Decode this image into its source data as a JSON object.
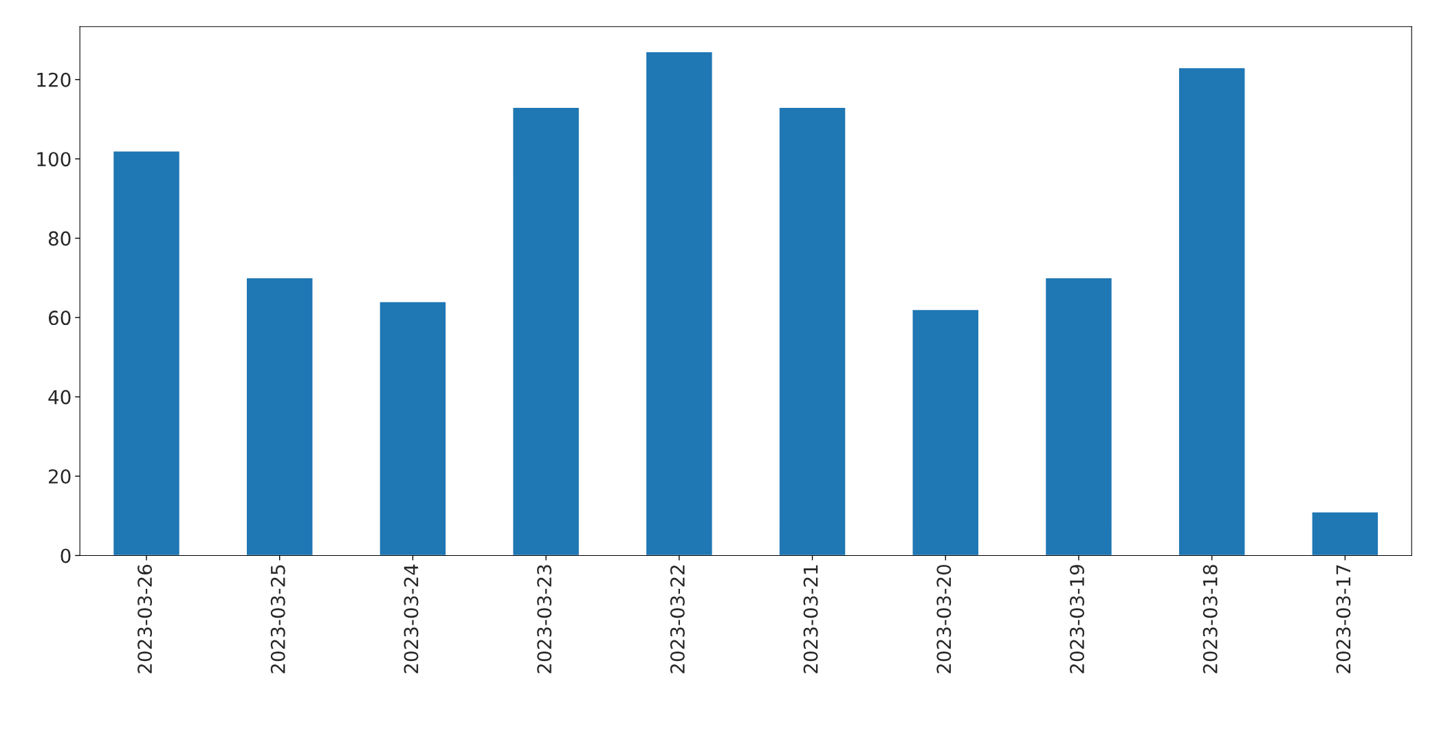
{
  "chart_data": {
    "type": "bar",
    "categories": [
      "2023-03-26",
      "2023-03-25",
      "2023-03-24",
      "2023-03-23",
      "2023-03-22",
      "2023-03-21",
      "2023-03-20",
      "2023-03-19",
      "2023-03-18",
      "2023-03-17"
    ],
    "values": [
      102,
      70,
      64,
      113,
      127,
      113,
      62,
      70,
      123,
      11
    ],
    "color": "#1f77b4",
    "ylim": [
      0,
      133.35
    ],
    "yticks": [
      0,
      20,
      40,
      60,
      80,
      100,
      120
    ],
    "grid": false
  }
}
